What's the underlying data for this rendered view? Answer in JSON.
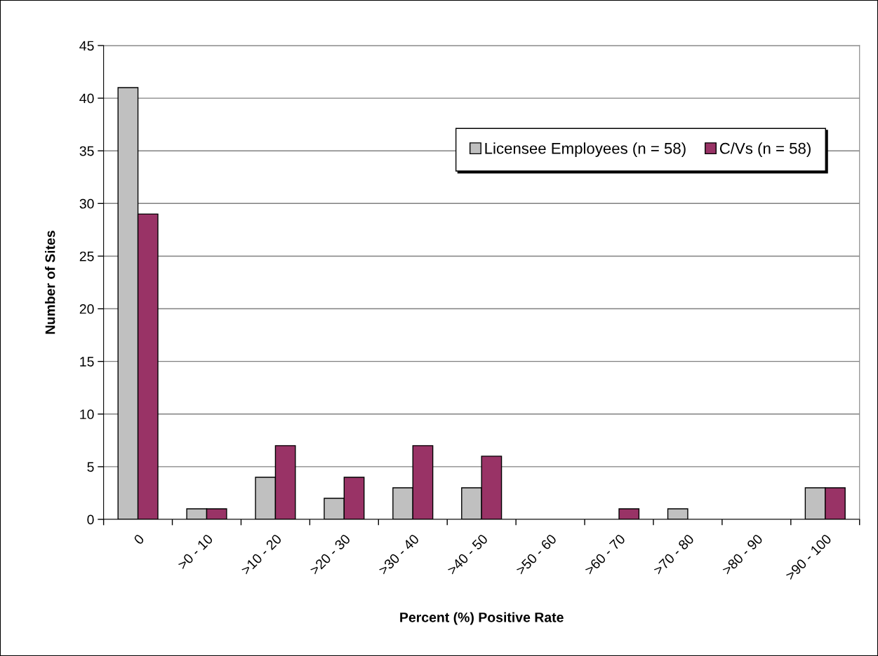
{
  "chart_data": {
    "type": "bar",
    "categories": [
      "0",
      ">0 - 10",
      ">10 - 20",
      ">20 - 30",
      ">30 - 40",
      ">40 - 50",
      ">50 - 60",
      ">60 - 70",
      ">70 - 80",
      ">80 - 90",
      ">90 - 100"
    ],
    "series": [
      {
        "name": "Licensee Employees (n = 58)",
        "color": "#c0c0c0",
        "values": [
          41,
          1,
          4,
          2,
          3,
          3,
          0,
          0,
          1,
          0,
          3
        ]
      },
      {
        "name": "C/Vs (n = 58)",
        "color": "#993366",
        "values": [
          29,
          1,
          7,
          4,
          7,
          6,
          0,
          1,
          0,
          0,
          3
        ]
      }
    ],
    "xlabel": "Percent (%) Positive Rate",
    "ylabel": "Number of Sites",
    "ylim": [
      0,
      45
    ],
    "yticks": [
      0,
      5,
      10,
      15,
      20,
      25,
      30,
      35,
      40,
      45
    ],
    "grid": "y",
    "legend": "top right"
  }
}
